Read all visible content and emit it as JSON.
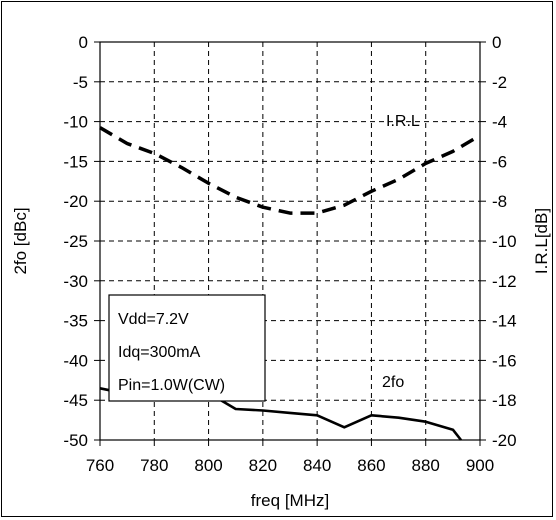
{
  "chart_data": {
    "type": "line",
    "xlabel": "freq [MHz]",
    "ylabel_left": "2fo [dBc]",
    "ylabel_right": "I.R.L[dB]",
    "x_ticks": [
      760,
      780,
      800,
      820,
      840,
      860,
      880,
      900
    ],
    "y_left_ticks": [
      0,
      -5,
      -10,
      -15,
      -20,
      -25,
      -30,
      -35,
      -40,
      -45,
      -50
    ],
    "y_right_ticks": [
      0,
      -2,
      -4,
      -6,
      -8,
      -10,
      -12,
      -14,
      -16,
      -18,
      -20
    ],
    "xlim": [
      760,
      900
    ],
    "ylim_left": [
      -50,
      0
    ],
    "ylim_right": [
      -20,
      0
    ],
    "grid": true,
    "series": [
      {
        "name": "2fo",
        "axis": "left",
        "style": "solid",
        "x": [
          760,
          770,
          780,
          790,
          800,
          810,
          820,
          830,
          840,
          850,
          860,
          870,
          880,
          890,
          893
        ],
        "y": [
          -43.5,
          -44.2,
          -44.2,
          -44.5,
          -44.1,
          -46.1,
          -46.3,
          -46.6,
          -46.9,
          -48.4,
          -46.9,
          -47.2,
          -47.7,
          -48.7,
          -50
        ]
      },
      {
        "name": "I.R.L",
        "axis": "right",
        "style": "dashed",
        "x": [
          760,
          770,
          780,
          790,
          800,
          810,
          820,
          830,
          840,
          850,
          860,
          870,
          880,
          890,
          900
        ],
        "y": [
          -4.3,
          -5.1,
          -5.6,
          -6.3,
          -7.1,
          -7.8,
          -8.3,
          -8.6,
          -8.6,
          -8.2,
          -7.5,
          -6.9,
          -6.1,
          -5.5,
          -4.7
        ]
      }
    ],
    "annotations": {
      "series_label_irl": "I.R.L",
      "series_label_2fo": "2fo",
      "conditions": [
        "Vdd=7.2V",
        "Idq=300mA",
        "Pin=1.0W(CW)"
      ]
    }
  }
}
